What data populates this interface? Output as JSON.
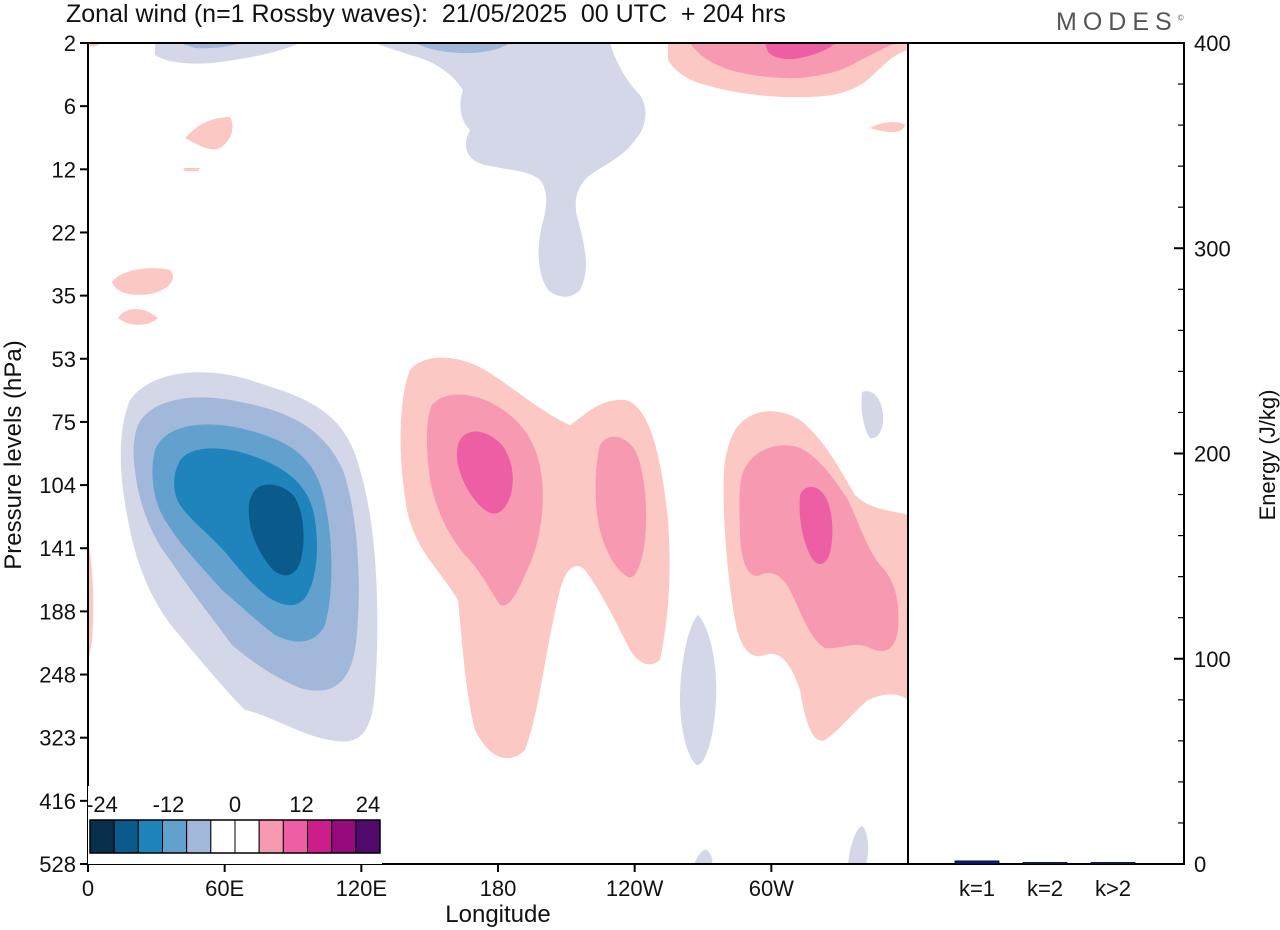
{
  "title": "Zonal wind (n=1 Rossby waves):  21/05/2025  00 UTC  + 204 hrs",
  "brand": "MODES",
  "brand_mark": "©",
  "colors": {
    "blue": [
      "#08304c",
      "#0a5a8c",
      "#1f84bb",
      "#62a1cd",
      "#a2b8da",
      "#d4d7e8"
    ],
    "red": [
      "#fbc8c3",
      "#f899b2",
      "#ee5ea4",
      "#cb1d8b",
      "#950a7d",
      "#4f0a6b"
    ],
    "bar": "#0a1a8c"
  },
  "chart_data": [
    {
      "type": "heatmap",
      "title": "Zonal wind (n=1 Rossby waves):  21/05/2025  00 UTC  + 204 hrs",
      "xlabel": "Longitude",
      "ylabel": "Pressure levels (hPa)",
      "x_ticks": [
        "0",
        "60E",
        "120E",
        "180",
        "120W",
        "60W"
      ],
      "y_ticks": [
        "2",
        "6",
        "12",
        "22",
        "35",
        "53",
        "75",
        "104",
        "141",
        "188",
        "248",
        "323",
        "416",
        "528"
      ],
      "colorbar": {
        "labels": [
          "-24",
          "-12",
          "0",
          "12",
          "24"
        ],
        "levels": [
          -24,
          -20,
          -16,
          -12,
          -8,
          -4,
          0,
          4,
          8,
          12,
          16,
          20,
          24
        ]
      },
      "features": [
        {
          "sign": "negative",
          "center_lon": 80,
          "center_level": 141,
          "min_value": -16
        },
        {
          "sign": "positive",
          "center_lon": 172,
          "center_level": 104,
          "max_value": 12
        },
        {
          "sign": "positive",
          "center_lon": 240,
          "center_level": 141,
          "max_value": 8
        },
        {
          "sign": "positive",
          "center_lon": 315,
          "center_level": 141,
          "max_value": 12
        },
        {
          "sign": "positive",
          "center_lon": 310,
          "center_level": 2,
          "max_value": 12
        },
        {
          "sign": "negative",
          "center_lon": 205,
          "center_level": 12,
          "min_value": -4
        }
      ]
    },
    {
      "type": "bar",
      "ylabel": "Energy (J/kg)",
      "categories": [
        "k=1",
        "k=2",
        "k>2"
      ],
      "values": [
        1.5,
        0.6,
        0.4
      ],
      "ylim": [
        0,
        400
      ],
      "y_ticks": [
        "0",
        "100",
        "200",
        "300",
        "400"
      ]
    }
  ]
}
